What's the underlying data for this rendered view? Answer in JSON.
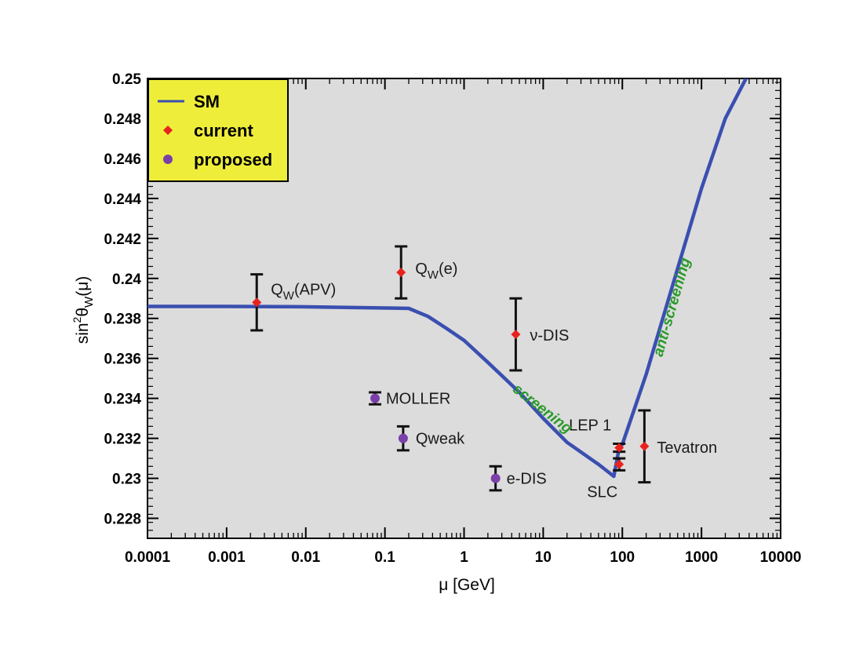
{
  "chart_data": {
    "type": "scatter",
    "xlabel": "μ [GeV]",
    "ylabel_main": "sin",
    "ylabel_sup": "2",
    "ylabel_theta": "θ",
    "ylabel_sub": "W",
    "ylabel_arg": "(μ)",
    "x_scale": "log",
    "xlim": [
      0.0001,
      10000
    ],
    "ylim": [
      0.227,
      0.25
    ],
    "x_ticks": [
      {
        "value": 0.0001,
        "label": "0.0001"
      },
      {
        "value": 0.001,
        "label": "0.001"
      },
      {
        "value": 0.01,
        "label": "0.01"
      },
      {
        "value": 0.1,
        "label": "0.1"
      },
      {
        "value": 1,
        "label": "1"
      },
      {
        "value": 10,
        "label": "10"
      },
      {
        "value": 100,
        "label": "100"
      },
      {
        "value": 1000,
        "label": "1000"
      },
      {
        "value": 10000,
        "label": "10000"
      }
    ],
    "y_ticks": [
      {
        "value": 0.228,
        "label": "0.228"
      },
      {
        "value": 0.23,
        "label": "0.23"
      },
      {
        "value": 0.232,
        "label": "0.232"
      },
      {
        "value": 0.234,
        "label": "0.234"
      },
      {
        "value": 0.236,
        "label": "0.236"
      },
      {
        "value": 0.238,
        "label": "0.238"
      },
      {
        "value": 0.24,
        "label": "0.24"
      },
      {
        "value": 0.242,
        "label": "0.242"
      },
      {
        "value": 0.244,
        "label": "0.244"
      },
      {
        "value": 0.246,
        "label": "0.246"
      },
      {
        "value": 0.248,
        "label": "0.248"
      },
      {
        "value": 0.25,
        "label": "0.25"
      }
    ],
    "background_color": "#dcdcdc",
    "sm_curve": {
      "name": "SM",
      "color": "#3a4fb0",
      "points": [
        [
          0.0001,
          0.2386
        ],
        [
          0.001,
          0.2386
        ],
        [
          0.01,
          0.23858
        ],
        [
          0.1,
          0.23852
        ],
        [
          0.2,
          0.2385
        ],
        [
          0.35,
          0.2381
        ],
        [
          0.6,
          0.2375
        ],
        [
          1.0,
          0.2369
        ],
        [
          2.0,
          0.2358
        ],
        [
          5.0,
          0.2343
        ],
        [
          10,
          0.233
        ],
        [
          20,
          0.2318
        ],
        [
          50,
          0.2307
        ],
        [
          78,
          0.2301
        ],
        [
          91.2,
          0.2315
        ],
        [
          100,
          0.2317
        ],
        [
          200,
          0.2352
        ],
        [
          500,
          0.2405
        ],
        [
          1000,
          0.2445
        ],
        [
          2000,
          0.248
        ],
        [
          4000,
          0.2503
        ]
      ]
    },
    "series": [
      {
        "name": "current",
        "color": "#e8231f",
        "points": [
          {
            "label": "Q_W(APV)",
            "x": 0.0024,
            "y": 0.2388,
            "err": 0.0014
          },
          {
            "label": "Q_W(e)",
            "x": 0.16,
            "y": 0.2403,
            "err": 0.0013
          },
          {
            "label": "ν-DIS",
            "x": 4.5,
            "y": 0.2372,
            "err": 0.0018
          },
          {
            "label": "LEP 1",
            "x": 91.2,
            "y": 0.23153,
            "err": 0.0002
          },
          {
            "label": "SLC",
            "x": 91.2,
            "y": 0.2307,
            "err": 0.0003
          },
          {
            "label": "Tevatron",
            "x": 190,
            "y": 0.2316,
            "err": 0.0018
          }
        ]
      },
      {
        "name": "proposed",
        "color": "#7a3fa8",
        "points": [
          {
            "label": "MOLLER",
            "x": 0.075,
            "y": 0.234,
            "err": 0.0003
          },
          {
            "label": "Qweak",
            "x": 0.17,
            "y": 0.232,
            "err": 0.0006
          },
          {
            "label": "e-DIS",
            "x": 2.5,
            "y": 0.23,
            "err": 0.0006
          }
        ]
      }
    ],
    "region_labels": [
      {
        "text": "screening"
      },
      {
        "text": "anti-screening"
      }
    ],
    "legend": {
      "placement": "top-left",
      "background": "#eeee3a",
      "entries": [
        {
          "label": "SM",
          "kind": "line"
        },
        {
          "label": "current",
          "kind": "point"
        },
        {
          "label": "proposed",
          "kind": "point"
        }
      ]
    }
  }
}
